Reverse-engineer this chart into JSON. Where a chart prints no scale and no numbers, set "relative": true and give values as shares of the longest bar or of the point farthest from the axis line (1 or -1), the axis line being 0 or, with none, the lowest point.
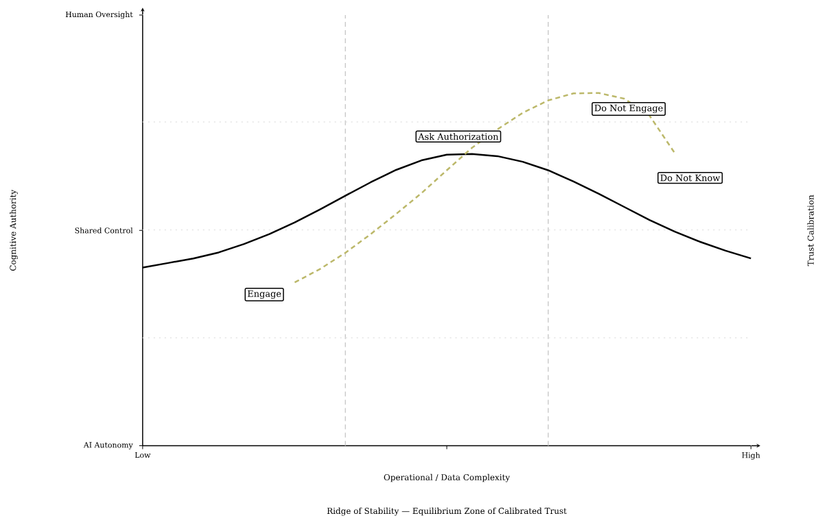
{
  "chart_data": {
    "type": "line",
    "relative": true,
    "xlabel": "Operational / Data Complexity",
    "categories": [
      "Low",
      null,
      null,
      null,
      null,
      null,
      null,
      null,
      null,
      null,
      null,
      null,
      null,
      null,
      null,
      null,
      null,
      null,
      null,
      null,
      null,
      null,
      null,
      null,
      "High"
    ],
    "series": [
      {
        "color": "#000000",
        "line_style": "solid",
        "values": [
          0.505,
          0.518,
          0.531,
          0.548,
          0.572,
          0.6,
          0.633,
          0.67,
          0.709,
          0.747,
          0.782,
          0.809,
          0.825,
          0.827,
          0.821,
          0.805,
          0.781,
          0.749,
          0.714,
          0.677,
          0.64,
          0.607,
          0.578,
          0.553,
          0.531
        ]
      },
      {
        "color": "#bcb86a",
        "line_style": "dashed",
        "values": [
          null,
          null,
          null,
          null,
          null,
          null,
          0.463,
          0.501,
          0.547,
          0.6,
          0.657,
          0.716,
          0.781,
          0.845,
          0.897,
          0.944,
          0.979,
          0.999,
          1.0,
          0.984,
          0.936,
          0.829,
          null,
          null,
          null
        ]
      }
    ],
    "ref_lines": [
      {
        "axis": "y",
        "value": 0.306,
        "line_style": "dotted",
        "color": "#e3e3e3"
      },
      {
        "axis": "y",
        "value": 0.612,
        "line_style": "dotted",
        "color": "#e3e3e3"
      },
      {
        "axis": "y",
        "value": 0.918,
        "line_style": "dotted",
        "color": "#e3e3e3"
      }
    ],
    "annotations": [
      "Engage",
      "Ask Authorization",
      "Do Not Engage",
      "Do Not Know",
      "Ridge of Stability — Equilibrium Zone of Calibrated Trust",
      "Human Oversight",
      "Shared Control",
      "AI Autonomy",
      "Cognitive Authority",
      "Trust Calibration"
    ]
  }
}
